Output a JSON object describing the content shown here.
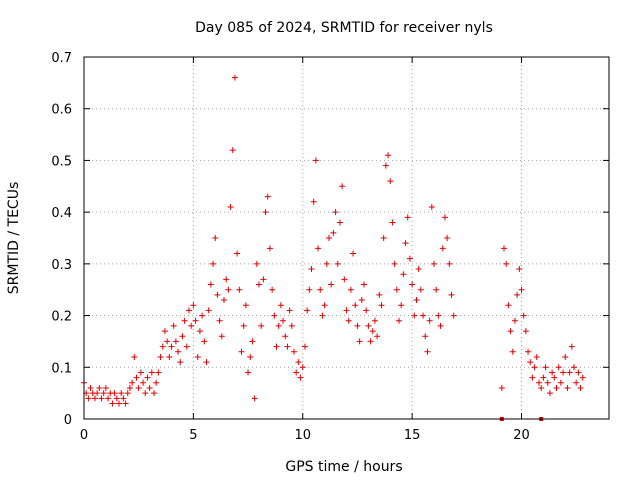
{
  "chart_data": {
    "type": "scatter",
    "title": "Day 085 of 2024, SRMTID for receiver nyls",
    "xlabel": "GPS time / hours",
    "ylabel": "SRMTID / TECUs",
    "xlim": [
      0,
      24
    ],
    "ylim": [
      0,
      0.7
    ],
    "xticks": [
      0,
      5,
      10,
      15,
      20
    ],
    "yticks": [
      0,
      0.1,
      0.2,
      0.3,
      0.4,
      0.5,
      0.6,
      0.7
    ],
    "xtick_labels": [
      "0",
      "5",
      "10",
      "15",
      "20"
    ],
    "ytick_labels": [
      "0",
      "0.1",
      "0.2",
      "0.3",
      "0.4",
      "0.5",
      "0.6",
      "0.7"
    ],
    "grid": true,
    "marker": "+",
    "color": "#e00000",
    "series": [
      {
        "name": "SRMTID",
        "points": [
          [
            0.0,
            0.07
          ],
          [
            0.1,
            0.05
          ],
          [
            0.2,
            0.04
          ],
          [
            0.3,
            0.06
          ],
          [
            0.4,
            0.05
          ],
          [
            0.5,
            0.04
          ],
          [
            0.6,
            0.05
          ],
          [
            0.7,
            0.06
          ],
          [
            0.8,
            0.04
          ],
          [
            0.9,
            0.05
          ],
          [
            1.0,
            0.06
          ],
          [
            1.1,
            0.04
          ],
          [
            1.2,
            0.05
          ],
          [
            1.3,
            0.03
          ],
          [
            1.4,
            0.05
          ],
          [
            1.5,
            0.04
          ],
          [
            1.6,
            0.03
          ],
          [
            1.7,
            0.05
          ],
          [
            1.8,
            0.04
          ],
          [
            1.9,
            0.03
          ],
          [
            2.0,
            0.05
          ],
          [
            2.1,
            0.06
          ],
          [
            2.2,
            0.07
          ],
          [
            2.3,
            0.12
          ],
          [
            2.4,
            0.08
          ],
          [
            2.5,
            0.06
          ],
          [
            2.6,
            0.09
          ],
          [
            2.7,
            0.07
          ],
          [
            2.8,
            0.05
          ],
          [
            2.9,
            0.08
          ],
          [
            3.0,
            0.06
          ],
          [
            3.1,
            0.09
          ],
          [
            3.2,
            0.05
          ],
          [
            3.3,
            0.07
          ],
          [
            3.4,
            0.09
          ],
          [
            3.5,
            0.12
          ],
          [
            3.6,
            0.14
          ],
          [
            3.7,
            0.17
          ],
          [
            3.8,
            0.15
          ],
          [
            3.9,
            0.12
          ],
          [
            4.0,
            0.14
          ],
          [
            4.1,
            0.18
          ],
          [
            4.2,
            0.15
          ],
          [
            4.3,
            0.13
          ],
          [
            4.4,
            0.11
          ],
          [
            4.5,
            0.16
          ],
          [
            4.6,
            0.19
          ],
          [
            4.7,
            0.14
          ],
          [
            4.8,
            0.21
          ],
          [
            4.9,
            0.18
          ],
          [
            5.0,
            0.22
          ],
          [
            5.1,
            0.19
          ],
          [
            5.2,
            0.12
          ],
          [
            5.3,
            0.17
          ],
          [
            5.4,
            0.2
          ],
          [
            5.5,
            0.15
          ],
          [
            5.6,
            0.11
          ],
          [
            5.7,
            0.21
          ],
          [
            5.8,
            0.26
          ],
          [
            5.9,
            0.3
          ],
          [
            6.0,
            0.35
          ],
          [
            6.1,
            0.24
          ],
          [
            6.2,
            0.19
          ],
          [
            6.3,
            0.16
          ],
          [
            6.4,
            0.23
          ],
          [
            6.5,
            0.27
          ],
          [
            6.6,
            0.25
          ],
          [
            6.7,
            0.41
          ],
          [
            6.8,
            0.52
          ],
          [
            6.9,
            0.66
          ],
          [
            7.0,
            0.32
          ],
          [
            7.1,
            0.25
          ],
          [
            7.2,
            0.13
          ],
          [
            7.3,
            0.18
          ],
          [
            7.4,
            0.22
          ],
          [
            7.5,
            0.09
          ],
          [
            7.6,
            0.12
          ],
          [
            7.7,
            0.15
          ],
          [
            7.8,
            0.04
          ],
          [
            7.9,
            0.3
          ],
          [
            8.0,
            0.26
          ],
          [
            8.1,
            0.18
          ],
          [
            8.2,
            0.27
          ],
          [
            8.3,
            0.4
          ],
          [
            8.4,
            0.43
          ],
          [
            8.5,
            0.33
          ],
          [
            8.6,
            0.25
          ],
          [
            8.7,
            0.2
          ],
          [
            8.8,
            0.14
          ],
          [
            8.9,
            0.18
          ],
          [
            9.0,
            0.22
          ],
          [
            9.1,
            0.19
          ],
          [
            9.2,
            0.16
          ],
          [
            9.3,
            0.14
          ],
          [
            9.4,
            0.21
          ],
          [
            9.5,
            0.18
          ],
          [
            9.6,
            0.13
          ],
          [
            9.7,
            0.09
          ],
          [
            9.8,
            0.11
          ],
          [
            9.9,
            0.08
          ],
          [
            10.0,
            0.1
          ],
          [
            10.1,
            0.14
          ],
          [
            10.2,
            0.21
          ],
          [
            10.3,
            0.25
          ],
          [
            10.4,
            0.29
          ],
          [
            10.5,
            0.42
          ],
          [
            10.6,
            0.5
          ],
          [
            10.7,
            0.33
          ],
          [
            10.8,
            0.25
          ],
          [
            10.9,
            0.2
          ],
          [
            11.0,
            0.22
          ],
          [
            11.1,
            0.3
          ],
          [
            11.2,
            0.35
          ],
          [
            11.3,
            0.26
          ],
          [
            11.4,
            0.36
          ],
          [
            11.5,
            0.4
          ],
          [
            11.6,
            0.3
          ],
          [
            11.7,
            0.38
          ],
          [
            11.8,
            0.45
          ],
          [
            11.9,
            0.27
          ],
          [
            12.0,
            0.21
          ],
          [
            12.1,
            0.19
          ],
          [
            12.2,
            0.25
          ],
          [
            12.3,
            0.32
          ],
          [
            12.4,
            0.22
          ],
          [
            12.5,
            0.18
          ],
          [
            12.6,
            0.15
          ],
          [
            12.7,
            0.23
          ],
          [
            12.8,
            0.26
          ],
          [
            12.9,
            0.21
          ],
          [
            13.0,
            0.18
          ],
          [
            13.1,
            0.15
          ],
          [
            13.2,
            0.17
          ],
          [
            13.3,
            0.19
          ],
          [
            13.4,
            0.16
          ],
          [
            13.5,
            0.24
          ],
          [
            13.6,
            0.22
          ],
          [
            13.7,
            0.35
          ],
          [
            13.8,
            0.49
          ],
          [
            13.9,
            0.51
          ],
          [
            14.0,
            0.46
          ],
          [
            14.1,
            0.38
          ],
          [
            14.2,
            0.3
          ],
          [
            14.3,
            0.25
          ],
          [
            14.4,
            0.19
          ],
          [
            14.5,
            0.22
          ],
          [
            14.6,
            0.28
          ],
          [
            14.7,
            0.34
          ],
          [
            14.8,
            0.39
          ],
          [
            14.9,
            0.31
          ],
          [
            15.0,
            0.26
          ],
          [
            15.1,
            0.2
          ],
          [
            15.2,
            0.23
          ],
          [
            15.3,
            0.29
          ],
          [
            15.4,
            0.25
          ],
          [
            15.5,
            0.2
          ],
          [
            15.6,
            0.16
          ],
          [
            15.7,
            0.13
          ],
          [
            15.8,
            0.19
          ],
          [
            15.9,
            0.41
          ],
          [
            16.0,
            0.3
          ],
          [
            16.1,
            0.25
          ],
          [
            16.2,
            0.2
          ],
          [
            16.3,
            0.18
          ],
          [
            16.4,
            0.33
          ],
          [
            16.5,
            0.39
          ],
          [
            16.6,
            0.35
          ],
          [
            16.7,
            0.3
          ],
          [
            16.8,
            0.24
          ],
          [
            16.9,
            0.2
          ],
          [
            19.1,
            0.06
          ],
          [
            19.2,
            0.33
          ],
          [
            19.3,
            0.3
          ],
          [
            19.4,
            0.22
          ],
          [
            19.5,
            0.17
          ],
          [
            19.6,
            0.13
          ],
          [
            19.7,
            0.19
          ],
          [
            19.8,
            0.24
          ],
          [
            19.9,
            0.29
          ],
          [
            20.0,
            0.25
          ],
          [
            20.1,
            0.2
          ],
          [
            20.2,
            0.17
          ],
          [
            20.3,
            0.13
          ],
          [
            20.4,
            0.11
          ],
          [
            20.5,
            0.08
          ],
          [
            20.6,
            0.1
          ],
          [
            20.7,
            0.12
          ],
          [
            20.8,
            0.07
          ],
          [
            20.9,
            0.06
          ],
          [
            21.0,
            0.08
          ],
          [
            21.1,
            0.1
          ],
          [
            21.2,
            0.07
          ],
          [
            21.3,
            0.05
          ],
          [
            21.4,
            0.09
          ],
          [
            21.5,
            0.08
          ],
          [
            21.6,
            0.06
          ],
          [
            21.7,
            0.1
          ],
          [
            21.8,
            0.07
          ],
          [
            21.9,
            0.09
          ],
          [
            22.0,
            0.12
          ],
          [
            22.1,
            0.06
          ],
          [
            22.2,
            0.09
          ],
          [
            22.3,
            0.14
          ],
          [
            22.4,
            0.1
          ],
          [
            22.5,
            0.07
          ],
          [
            22.6,
            0.09
          ],
          [
            22.7,
            0.06
          ],
          [
            22.8,
            0.08
          ]
        ]
      }
    ],
    "zero_markers": [
      19.1,
      20.9
    ]
  }
}
